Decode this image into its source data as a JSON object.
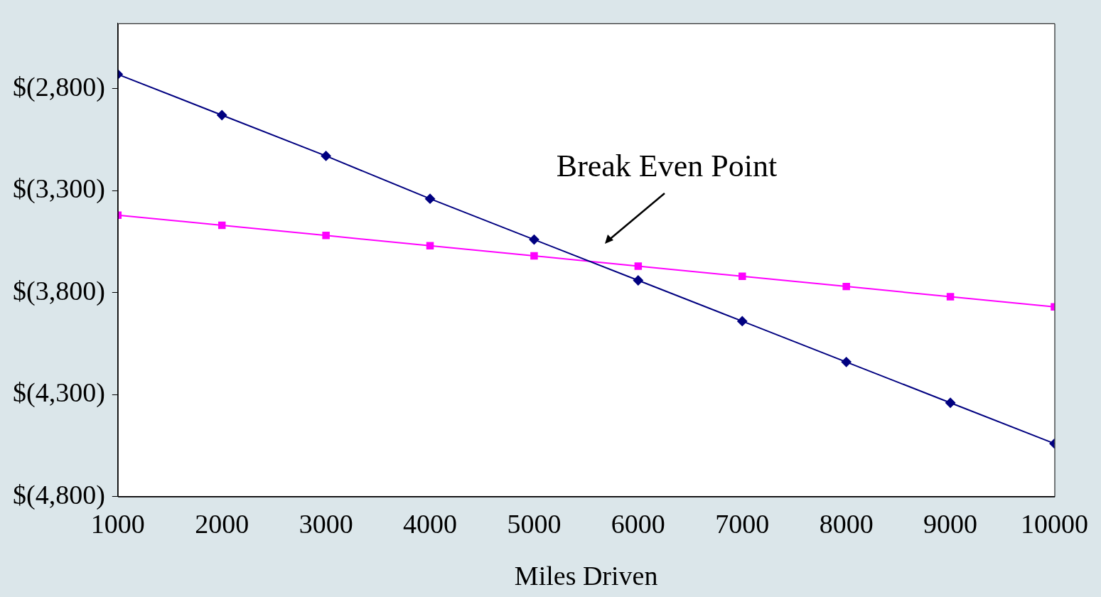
{
  "chart_data": {
    "type": "line",
    "xlabel": "Miles Driven",
    "x": [
      1000,
      2000,
      3000,
      4000,
      5000,
      6000,
      7000,
      8000,
      9000,
      10000
    ],
    "xlim": [
      1000,
      10000
    ],
    "xticks": [
      1000,
      2000,
      3000,
      4000,
      5000,
      6000,
      7000,
      8000,
      9000,
      10000
    ],
    "ylim": [
      -4800,
      -2480
    ],
    "yticks": [
      {
        "value": -4800,
        "label": "$(4,800)"
      },
      {
        "value": -4300,
        "label": "$(4,300)"
      },
      {
        "value": -3800,
        "label": "$(3,800)"
      },
      {
        "value": -3300,
        "label": "$(3,300)"
      },
      {
        "value": -2800,
        "label": "$(2,800)"
      }
    ],
    "series": [
      {
        "color": "#000080",
        "marker": "diamond",
        "values": [
          -2730,
          -2930,
          -3130,
          -3340,
          -3540,
          -3740,
          -3940,
          -4140,
          -4340,
          -4540
        ]
      },
      {
        "color": "#ff00ff",
        "marker": "square",
        "values": [
          -3420,
          -3470,
          -3520,
          -3570,
          -3620,
          -3670,
          -3720,
          -3770,
          -3820,
          -3870
        ]
      }
    ],
    "annotations": [
      "Break Even Point"
    ],
    "grid": false,
    "legend": false,
    "line_style": "solid"
  }
}
